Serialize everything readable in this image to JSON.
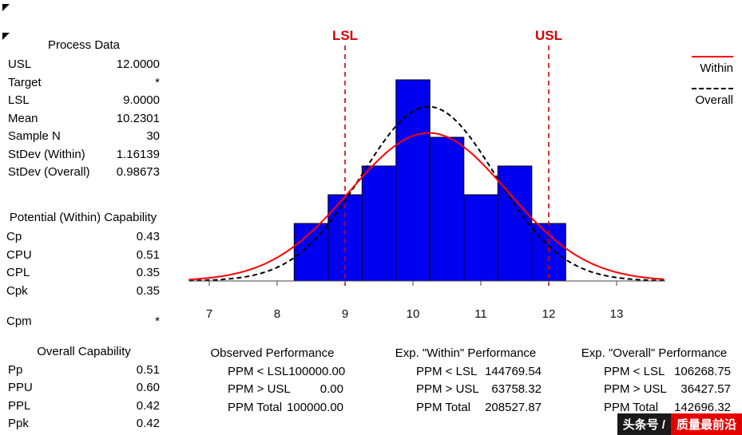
{
  "process_data": {
    "title": "Process Data",
    "rows": [
      {
        "label": "USL",
        "value": "12.0000"
      },
      {
        "label": "Target",
        "value": "*"
      },
      {
        "label": "LSL",
        "value": "9.0000"
      },
      {
        "label": "Mean",
        "value": "10.2301"
      },
      {
        "label": "Sample N",
        "value": "30"
      },
      {
        "label": "StDev (Within)",
        "value": "1.16139"
      },
      {
        "label": "StDev (Overall)",
        "value": "0.98673"
      }
    ]
  },
  "potential_capability": {
    "title": "Potential (Within) Capability",
    "rows": [
      {
        "label": "Cp",
        "value": "0.43"
      },
      {
        "label": "CPU",
        "value": "0.51"
      },
      {
        "label": "CPL",
        "value": "0.35"
      },
      {
        "label": "Cpk",
        "value": "0.35"
      },
      {
        "label": "Cpm",
        "value": "*"
      }
    ]
  },
  "overall_capability": {
    "title": "Overall Capability",
    "rows": [
      {
        "label": "Pp",
        "value": "0.51"
      },
      {
        "label": "PPU",
        "value": "0.60"
      },
      {
        "label": "PPL",
        "value": "0.42"
      },
      {
        "label": "Ppk",
        "value": "0.42"
      }
    ]
  },
  "performance": {
    "tables": [
      {
        "title": "Observed Performance",
        "rows": [
          {
            "label": "PPM < LSL",
            "value": "100000.00"
          },
          {
            "label": "PPM > USL",
            "value": "0.00"
          },
          {
            "label": "PPM Total",
            "value": "100000.00"
          }
        ]
      },
      {
        "title": "Exp. \"Within\" Performance",
        "rows": [
          {
            "label": "PPM < LSL",
            "value": "144769.54"
          },
          {
            "label": "PPM > USL",
            "value": "63758.32"
          },
          {
            "label": "PPM Total",
            "value": "208527.87"
          }
        ]
      },
      {
        "title": "Exp. \"Overall\" Performance",
        "rows": [
          {
            "label": "PPM < LSL",
            "value": "106268.75"
          },
          {
            "label": "PPM > USL",
            "value": "36427.57"
          },
          {
            "label": "PPM Total",
            "value": "142696.32"
          }
        ]
      }
    ]
  },
  "legend": {
    "items": [
      {
        "label": "Within"
      },
      {
        "label": "Overall"
      }
    ]
  },
  "watermark": {
    "prefix": "头条号 /",
    "name": "质量最前沿"
  },
  "chart_data": {
    "type": "bar",
    "subtype": "process-capability-histogram",
    "title": "",
    "xlabel": "",
    "ylabel": "",
    "bin_start": 8.25,
    "bin_width": 0.5,
    "bin_centers": [
      8.5,
      9.0,
      9.5,
      10.0,
      10.5,
      11.0,
      11.5,
      12.0
    ],
    "frequencies": [
      2,
      3,
      4,
      7,
      5,
      3,
      4,
      2
    ],
    "sample_n": 30,
    "x_ticks": [
      7,
      8,
      9,
      10,
      11,
      12,
      13
    ],
    "x_range": [
      6.7,
      13.72
    ],
    "spec_lines": [
      {
        "label": "LSL",
        "x": 9
      },
      {
        "label": "USL",
        "x": 12
      }
    ],
    "curves": [
      {
        "name": "Within",
        "mean": 10.2301,
        "stdev": 1.16139,
        "color": "#ff0000",
        "dashed": false
      },
      {
        "name": "Overall",
        "mean": 10.2301,
        "stdev": 0.98673,
        "color": "#000000",
        "dashed": true
      }
    ],
    "bar_color": "#0000f0",
    "bar_edge_color": "#000000",
    "spec_color": "#d40000"
  }
}
